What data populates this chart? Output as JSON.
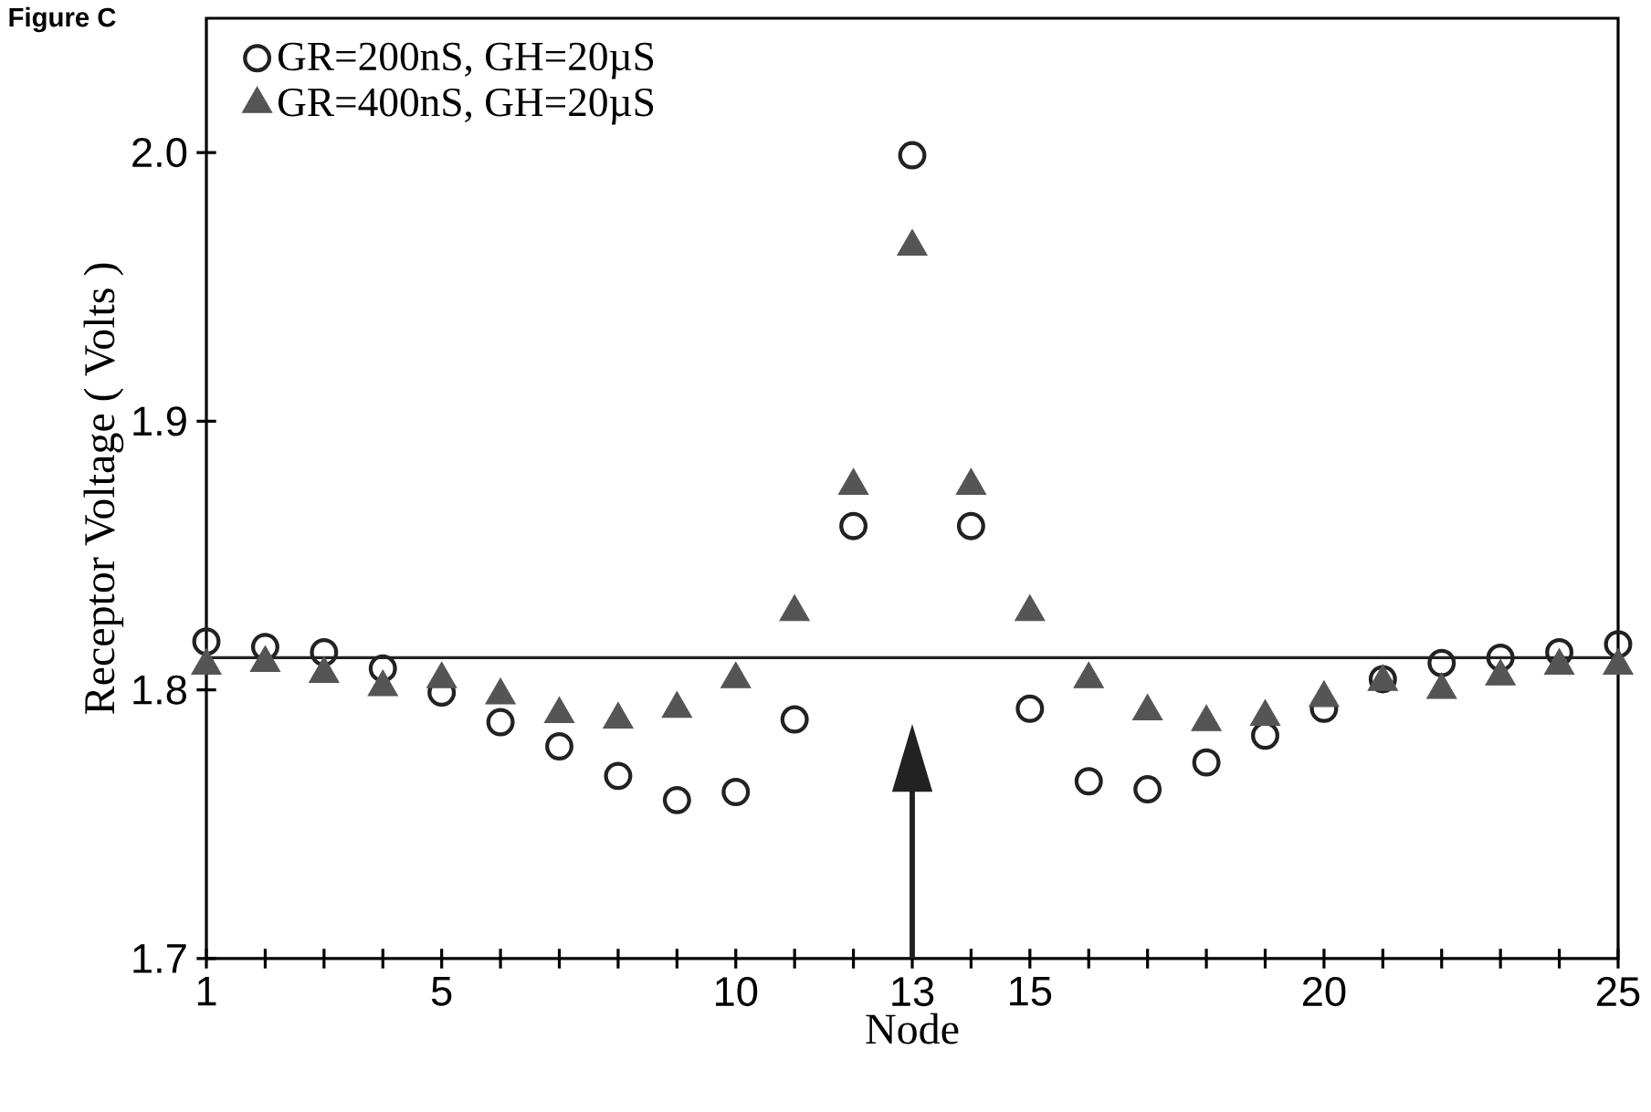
{
  "chart_data": {
    "type": "scatter",
    "title": "Figure C",
    "xlabel": "Node",
    "ylabel": "Receptor Voltage ( Volts )",
    "x": [
      1,
      2,
      3,
      4,
      5,
      6,
      7,
      8,
      9,
      10,
      11,
      12,
      13,
      14,
      15,
      16,
      17,
      18,
      19,
      20,
      21,
      22,
      23,
      24,
      25
    ],
    "series": [
      {
        "name": "GR=200nS, GH=20µS",
        "color": "#222222",
        "marker": "circle",
        "values": [
          1.818,
          1.816,
          1.814,
          1.808,
          1.799,
          1.788,
          1.779,
          1.768,
          1.759,
          1.762,
          1.789,
          1.861,
          1.999,
          1.861,
          1.793,
          1.766,
          1.763,
          1.773,
          1.783,
          1.793,
          1.804,
          1.81,
          1.812,
          1.814,
          1.817
        ]
      },
      {
        "name": "GR=400nS, GH=20µS",
        "color": "#555555",
        "marker": "triangle",
        "values": [
          1.809,
          1.81,
          1.806,
          1.801,
          1.804,
          1.798,
          1.791,
          1.789,
          1.793,
          1.804,
          1.829,
          1.876,
          1.965,
          1.876,
          1.829,
          1.804,
          1.792,
          1.788,
          1.79,
          1.797,
          1.803,
          1.8,
          1.805,
          1.809,
          1.809
        ]
      }
    ],
    "xlim": [
      1,
      25
    ],
    "ylim": [
      1.7,
      2.05
    ],
    "xticks": [
      1,
      {
        "value": 2,
        "label": null
      },
      {
        "value": 3,
        "label": null
      },
      {
        "value": 4,
        "label": null
      },
      5,
      {
        "value": 6,
        "label": null
      },
      {
        "value": 7,
        "label": null
      },
      {
        "value": 8,
        "label": null
      },
      {
        "value": 9,
        "label": null
      },
      10,
      {
        "value": 11,
        "label": null
      },
      {
        "value": 12,
        "label": null
      },
      13,
      {
        "value": 14,
        "label": null
      },
      15,
      {
        "value": 16,
        "label": null
      },
      {
        "value": 17,
        "label": null
      },
      {
        "value": 18,
        "label": null
      },
      {
        "value": 19,
        "label": null
      },
      20,
      {
        "value": 21,
        "label": null
      },
      {
        "value": 22,
        "label": null
      },
      {
        "value": 23,
        "label": null
      },
      {
        "value": 24,
        "label": null
      },
      25
    ],
    "yticks": [
      {
        "value": 1.7,
        "label": "1.7"
      },
      {
        "value": 1.8,
        "label": "1.8"
      },
      {
        "value": 1.9,
        "label": "1.9"
      },
      {
        "value": 2.0,
        "label": "2.0"
      }
    ],
    "ref_lines": [
      {
        "axis": "y",
        "value": 1.812,
        "color": "#222222"
      },
      {
        "axis": "x",
        "value": 13,
        "color": "#222222",
        "line_style": "solid"
      }
    ],
    "legend": "top left"
  }
}
